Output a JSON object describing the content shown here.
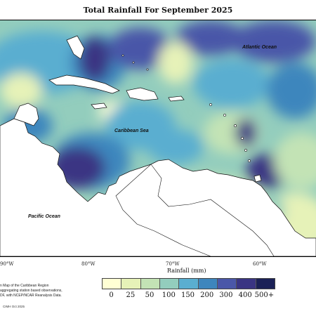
{
  "title": "Total Rainfall For September 2025",
  "labels": {
    "atlantic": "Atlantic Ocean",
    "caribbean": "Caribbean Sea",
    "pacific": "Pacific Ocean"
  },
  "longitudes": [
    "90°W",
    "80°W",
    "70°W",
    "60°W"
  ],
  "legend": {
    "title": "Rainfall (mm)",
    "ticks": [
      "0",
      "25",
      "50",
      "100",
      "150",
      "200",
      "300",
      "400",
      "500+"
    ],
    "colors": [
      "#ffffd4",
      "#e6f2b8",
      "#c3e3b5",
      "#93cdbd",
      "#5aaed0",
      "#3e86bd",
      "#4a57a8",
      "#3a3583",
      "#1b2157"
    ]
  },
  "description": [
    "n Map of the Caribbean Region",
    "aggregating station based observations,",
    "DF, with NCEP/NCAR Reanalysis Data."
  ],
  "credit": "CIMH Oct 2025"
}
